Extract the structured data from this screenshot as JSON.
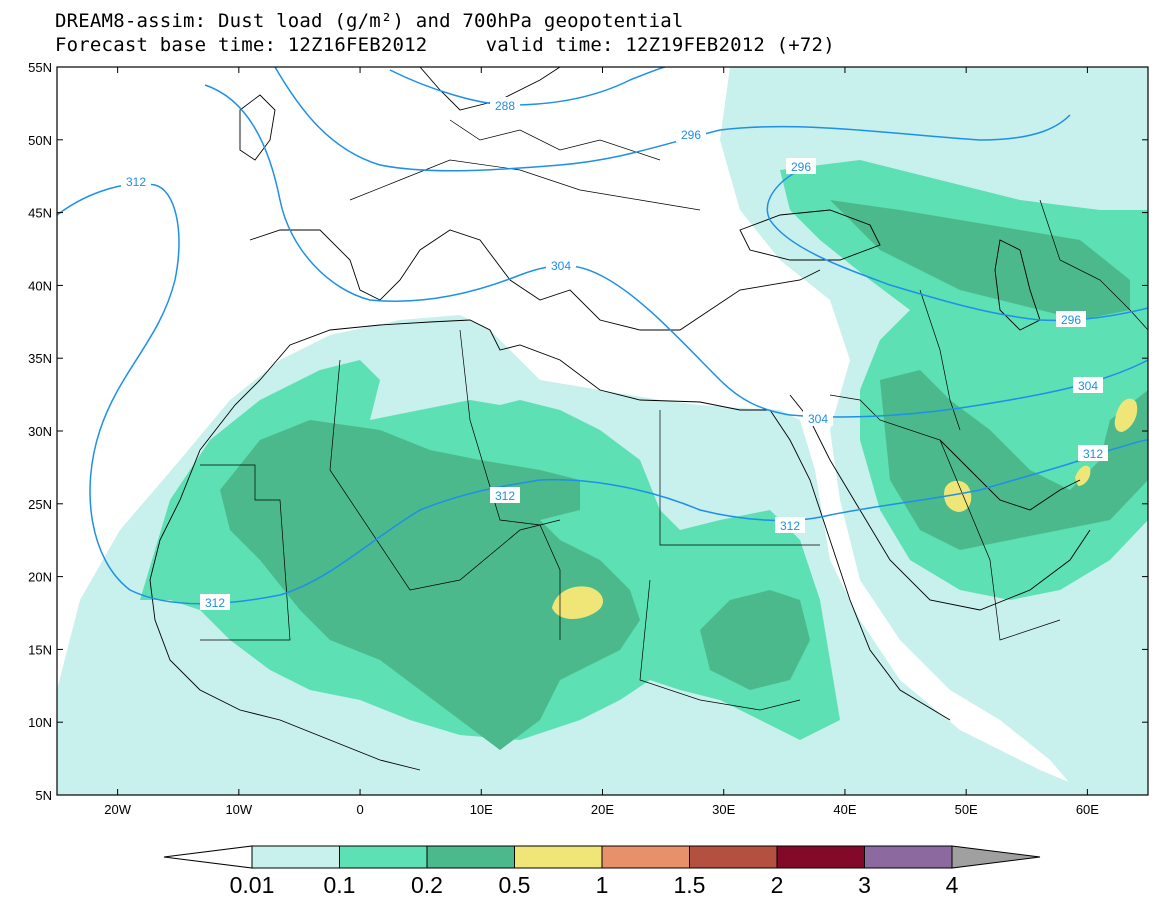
{
  "title": {
    "line1": "DREAM8-assim: Dust load (g/m²) and 700hPa geopotential",
    "line2_prefix": "Forecast base time: ",
    "base_time": "12Z16FEB2012",
    "line2_mid": "     valid time: ",
    "valid_time": "12Z19FEB2012 (+72)"
  },
  "map": {
    "lon_range": [
      -25,
      65
    ],
    "lat_range": [
      5,
      55
    ],
    "lat_ticks": [
      {
        "value": 55,
        "label": "55N"
      },
      {
        "value": 50,
        "label": "50N"
      },
      {
        "value": 45,
        "label": "45N"
      },
      {
        "value": 40,
        "label": "40N"
      },
      {
        "value": 35,
        "label": "35N"
      },
      {
        "value": 30,
        "label": "30N"
      },
      {
        "value": 25,
        "label": "25N"
      },
      {
        "value": 20,
        "label": "20N"
      },
      {
        "value": 15,
        "label": "15N"
      },
      {
        "value": 10,
        "label": "10N"
      },
      {
        "value": 5,
        "label": "5N"
      }
    ],
    "lon_ticks": [
      {
        "value": -20,
        "label": "20W"
      },
      {
        "value": -10,
        "label": "10W"
      },
      {
        "value": 0,
        "label": "0"
      },
      {
        "value": 10,
        "label": "10E"
      },
      {
        "value": 20,
        "label": "20E"
      },
      {
        "value": 30,
        "label": "30E"
      },
      {
        "value": 40,
        "label": "40E"
      },
      {
        "value": 50,
        "label": "50E"
      },
      {
        "value": 60,
        "label": "60E"
      }
    ],
    "contour_labels": [
      "288",
      "296",
      "296",
      "296",
      "304",
      "304",
      "304",
      "312",
      "312",
      "312",
      "312",
      "312"
    ]
  },
  "colorbar": {
    "colors": [
      "#c8f0ec",
      "#5ce0b4",
      "#4bb98c",
      "#f0e678",
      "#e8906a",
      "#b45040",
      "#820a28",
      "#8c6aa0"
    ],
    "under_color": "#ffffff",
    "over_color": "#a0a0a0",
    "labels": [
      "0.01",
      "0.1",
      "0.2",
      "0.5",
      "1",
      "1.5",
      "2",
      "3",
      "4"
    ]
  },
  "colors": {
    "contour": "#1e90e8",
    "level_0_01": "#c8f0ec",
    "level_0_1": "#5ce0b4",
    "level_0_2": "#4bb98c",
    "level_0_5": "#f0e678"
  }
}
